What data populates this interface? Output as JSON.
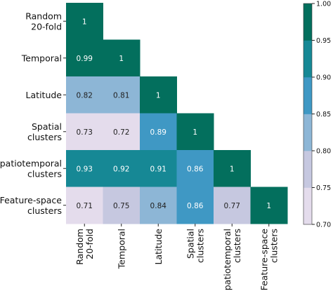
{
  "chart_data": {
    "type": "heatmap",
    "row_labels": [
      [
        "Random",
        "20-fold"
      ],
      [
        "Temporal"
      ],
      [
        "Latitude"
      ],
      [
        "Spatial",
        "clusters"
      ],
      [
        "Spatiotemporal",
        "clusters"
      ],
      [
        "Feature-space",
        "clusters"
      ]
    ],
    "col_labels": [
      [
        "Random",
        "20-fold"
      ],
      [
        "Temporal"
      ],
      [
        "Latitude"
      ],
      [
        "Spatial",
        "clusters"
      ],
      [
        "Spatiotemporal",
        "clusters"
      ],
      [
        "Feature-space",
        "clusters"
      ]
    ],
    "values": [
      [
        1,
        null,
        null,
        null,
        null,
        null
      ],
      [
        0.99,
        1,
        null,
        null,
        null,
        null
      ],
      [
        0.82,
        0.81,
        1,
        null,
        null,
        null
      ],
      [
        0.73,
        0.72,
        0.89,
        1,
        null,
        null
      ],
      [
        0.93,
        0.92,
        0.91,
        0.86,
        1,
        null
      ],
      [
        0.71,
        0.75,
        0.84,
        0.86,
        0.77,
        1
      ]
    ],
    "colorbar": {
      "min": 0.7,
      "max": 1.0,
      "ticks": [
        "0.70",
        "0.75",
        "0.80",
        "0.85",
        "0.90",
        "0.95",
        "1.00"
      ],
      "bins": [
        {
          "from": 0.7,
          "to": 0.75,
          "color": "#e4dcec"
        },
        {
          "from": 0.75,
          "to": 0.8,
          "color": "#c6c8e0"
        },
        {
          "from": 0.8,
          "to": 0.85,
          "color": "#8db6d6"
        },
        {
          "from": 0.85,
          "to": 0.9,
          "color": "#3f98c4"
        },
        {
          "from": 0.9,
          "to": 0.95,
          "color": "#168895"
        },
        {
          "from": 0.95,
          "to": 1.0,
          "color": "#036f5d"
        }
      ]
    }
  }
}
